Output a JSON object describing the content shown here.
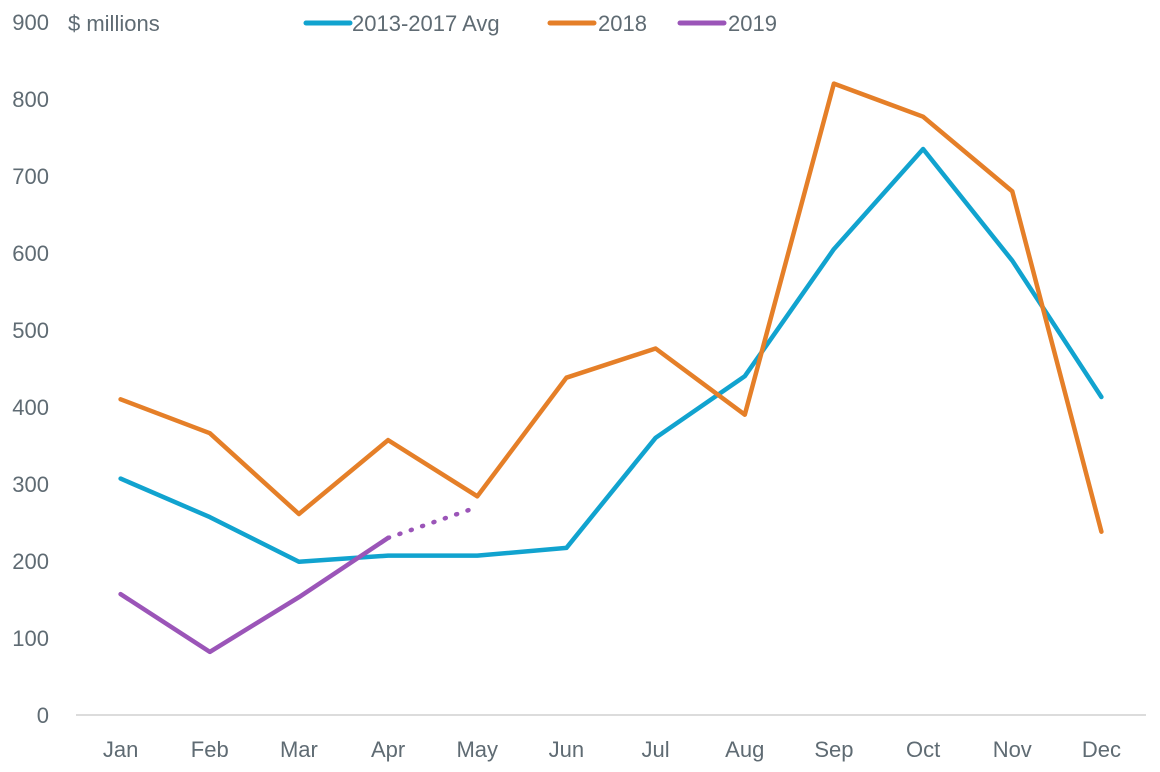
{
  "chart_data": {
    "type": "line",
    "unit_label": "$ millions",
    "categories": [
      "Jan",
      "Feb",
      "Mar",
      "Apr",
      "May",
      "Jun",
      "Jul",
      "Aug",
      "Sep",
      "Oct",
      "Nov",
      "Dec"
    ],
    "ylim": [
      0,
      900
    ],
    "yticks": [
      0,
      100,
      200,
      300,
      400,
      500,
      600,
      700,
      800,
      900
    ],
    "grid": false,
    "legend_position": "top",
    "series": [
      {
        "name": "2013-2017 Avg",
        "color": "#11a3cf",
        "values": [
          307,
          257,
          199,
          207,
          207,
          217,
          360,
          440,
          605,
          735,
          590,
          413
        ]
      },
      {
        "name": "2018",
        "color": "#e57f28",
        "values": [
          410,
          366,
          261,
          357,
          284,
          438,
          476,
          390,
          820,
          777,
          680,
          238
        ]
      },
      {
        "name": "2019",
        "color": "#9b55b8",
        "values": [
          157,
          82,
          153,
          230,
          null,
          null,
          null,
          null,
          null,
          null,
          null,
          null
        ],
        "projection": [
          null,
          null,
          null,
          230,
          270,
          null,
          null,
          null,
          null,
          null,
          null,
          null
        ],
        "projection_style": "dotted"
      }
    ]
  }
}
